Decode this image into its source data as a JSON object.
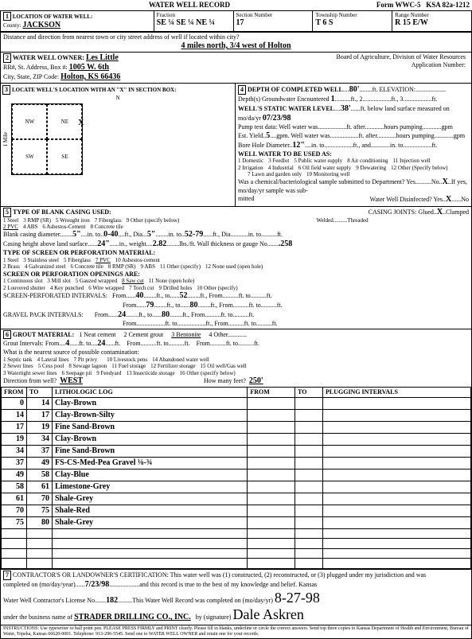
{
  "title": "WATER WELL RECORD",
  "form_no": "Form WWC-5",
  "ksa": "KSA 82a-1212",
  "header": {
    "location_label": "LOCATION OF WATER WELL:",
    "county_label": "County:",
    "county": "JACKSON",
    "fraction_label": "Fraction",
    "fraction": "SE ¼  SE ¼  NE ¼",
    "section_label": "Section Number",
    "section": "17",
    "township_label": "Township Number",
    "township": "T   6   S",
    "range_label": "Range Number",
    "range": "R   15   E/W"
  },
  "distance": {
    "label": "Distance and direction from nearest town or city street address of well if located within city?",
    "value": "4 miles north, 3/4 west of Holton"
  },
  "owner": {
    "label": "WATER WELL OWNER:",
    "name": "Les Little",
    "addr_label": "RR#, St. Address, Box #:",
    "addr": "1005 W. 6th",
    "city_label": "City, State, ZIP Code:",
    "city": "Holton, KS  66436",
    "board": "Board of Agriculture, Division of Water Resources",
    "app_label": "Application Number:"
  },
  "sec3": {
    "label": "LOCATE WELL'S LOCATION WITH AN \"X\" IN SECTION BOX:",
    "nw": "NW",
    "ne": "NE",
    "sw": "SW",
    "se": "SE",
    "mark": "X",
    "mile": "1 Mile",
    "north": "N",
    "east": "E",
    "south": "S",
    "west": "W"
  },
  "sec4": {
    "label": "DEPTH OF COMPLETED WELL",
    "depth": "80'",
    "elev_label": "ft. ELEVATION:",
    "gw1": "Depth(s) Groundwater Encountered",
    "gw1v": "1",
    "gw12": "ft., 2",
    "gw13": "ft., 3",
    "gwft": "ft.",
    "static": "WELL'S STATIC WATER LEVEL",
    "static_v": "38'",
    "static_txt": "ft. below land surface measured on mo/da/yr",
    "date": "07/23/98",
    "pump": "Pump test data:  Well water was",
    "after": "ft. after",
    "hours": "hours pumping",
    "gpm": "gpm",
    "est": "Est. Yield",
    "est_v": "5",
    "est_unit": "gpm.  Well water was",
    "bore": "Bore Hole Diameter",
    "bore_v": "12\"",
    "bore_to": "in. to",
    "bore_and": "ft., and",
    "bore_into": "in. to",
    "bore_ft": "ft.",
    "use": "WELL WATER TO BE USED AS:",
    "uses": [
      "1 Domestic",
      "2 Irrigation",
      "3 Feedlot",
      "4 Industrial",
      "5 Public water supply",
      "6 Oil field water supply",
      "7 Lawn and garden only",
      "8 Air conditioning",
      "9 Dewatering",
      "10 Monitoring well",
      "11 Injection well",
      "12 Other (Specify below)"
    ],
    "bact": "Was a chemical/bacteriological sample submitted to Department? Yes",
    "bact_no": "No",
    "bact_x": "X",
    "bact_txt": "If yes, mo/day/yr sample was sub-",
    "mitted": "mitted",
    "disinf": "Water Well Disinfected?  Yes",
    "disinf_x": "X",
    "disinf_no": "No"
  },
  "sec5": {
    "label": "TYPE OF BLANK CASING USED:",
    "opts": [
      "1 Steel",
      "2 PVC",
      "3 RMP (SR)",
      "4 ABS",
      "5 Wrought iron",
      "6 Asbestos-Cement",
      "7 Fiberglass",
      "8 Concrete tile",
      "9 Other (specify below)"
    ],
    "joints": "CASING JOINTS: Glued",
    "joints_x": "X",
    "joints2": "Clamped",
    "welded": "Welded",
    "threaded": "Threaded",
    "bcd": "Blank casing diameter",
    "bcd_v": "5\"",
    "bcd_to": "in. to",
    "bcd_v2": "0-40",
    "bcd_ft": "ft., Dia.",
    "bcd_v3": "5\"",
    "bcd_to2": "in. to",
    "bcd_v4": "52-79",
    "bcd_ft2": "ft., Dia.",
    "bcd_to3": "in. to",
    "bcd_ft3": "ft.",
    "ch": "Casing height above land surface",
    "ch_v": "24\"",
    "ch_in": "in., weight",
    "ch_w": "2.82",
    "ch_txt": "lbs./ft. Wall thickness or gauge No.",
    "ch_g": ".258",
    "screen": "TYPE OF SCREEN OR PERFORATION MATERIAL:",
    "scr_opts": [
      "1 Steel",
      "2 Brass",
      "3 Stainless steel",
      "4 Galvanized steel",
      "5 Fiberglass",
      "6 Concrete tile",
      "7 PVC",
      "8 RMP (SR)",
      "9 ABS",
      "10 Asbestos-cement",
      "11 Other (specify)",
      "12 None used (open hole)"
    ],
    "perf": "SCREEN OR PERFORATION OPENINGS ARE:",
    "perf_opts": [
      "1 Continuous slot",
      "2 Louvered shutter",
      "3 Mill slot",
      "4 Key punched",
      "5 Gauzed wrapped",
      "6 Wire wrapped",
      "7 Torch cut",
      "8 Saw cut",
      "9 Drilled holes",
      "10 Other (specify)",
      "11 None (open hole)"
    ],
    "spi": "SCREEN-PERFORATED INTERVALS:",
    "from": "From",
    "to": "ft., to",
    "ft": "ft.",
    "spi_rows": [
      [
        "40",
        "52"
      ],
      [
        "79",
        "80"
      ],
      [
        "24",
        "80"
      ]
    ],
    "gpi": "GRAVEL PACK INTERVALS:"
  },
  "sec6": {
    "label": "GROUT MATERIAL:",
    "opts": [
      "1 Neat cement",
      "2 Cement grout",
      "3 Bentonite",
      "4 Other"
    ],
    "gi": "Grout Intervals:   From",
    "gi_v1": "4",
    "gi_to": "ft. to",
    "gi_v2": "24",
    "gi_ft": "ft.",
    "gi_from2": "From",
    "gi_to2": "ft. to",
    "gi_ft2": "ft.",
    "contam": "What is the nearest source of possible contamination:",
    "c_opts": [
      "1 Septic tank",
      "2 Sewer lines",
      "3 Watertight sewer lines",
      "4 Lateral lines",
      "5 Cess pool",
      "6 Seepage pit",
      "7 Pit privy",
      "8 Sewage lagoon",
      "9 Feedyard",
      "10 Livestock pens",
      "11 Fuel storage",
      "12 Fertilizer storage",
      "13 Insecticide storage",
      "14 Abandoned water well",
      "15 Oil well/Gas well",
      "16 Other (specify below)"
    ],
    "dir": "Direction from well?",
    "dir_v": "WEST",
    "feet": "How many feet?",
    "feet_v": "250'"
  },
  "log": {
    "h1": "FROM",
    "h2": "TO",
    "h3": "LITHOLOGIC LOG",
    "h4": "FROM",
    "h5": "TO",
    "h6": "PLUGGING INTERVALS",
    "rows": [
      [
        "0",
        "14",
        "Clay-Brown"
      ],
      [
        "14",
        "17",
        "Clay-Brown-Silty"
      ],
      [
        "17",
        "19",
        "Fine Sand-Brown"
      ],
      [
        "19",
        "34",
        "Clay-Brown"
      ],
      [
        "34",
        "37",
        "Fine Sand-Brown"
      ],
      [
        "37",
        "49",
        "FS-CS-Med-Pea Gravel ⅛-¾"
      ],
      [
        "49",
        "58",
        "Clay-Blue"
      ],
      [
        "58",
        "61",
        "Limestone-Grey"
      ],
      [
        "61",
        "70",
        "Shale-Grey"
      ],
      [
        "70",
        "75",
        "Shale-Red"
      ],
      [
        "75",
        "80",
        "Shale-Grey"
      ]
    ]
  },
  "sec7": {
    "label": "CONTRACTOR'S OR LANDOWNER'S CERTIFICATION: This water well was (1) constructed, (2) reconstructed, or (3) plugged under my jurisdiction and was",
    "comp": "completed on (mo/day/year)",
    "comp_v": "7/23/98",
    "rest": "and this record is true to the best of my knowledge and belief. Kansas",
    "lic": "Water Well Contractor's License No.",
    "lic_v": "182",
    "rec": "This Water Well Record was completed on (mo/day/yr)",
    "rec_v": "8-27-98",
    "biz": "under the business name of",
    "biz_v": "STRADER DRILLING CO., INC.",
    "by": "by (signature)",
    "sig": "Dale Askren"
  },
  "footer": "INSTRUCTIONS: Use typewriter or ball point pen. PLEASE PRESS FIRMLY and PRINT clearly. Please fill in blanks, underline or circle the correct answers. Send top three copies to Kansas Department of Health and Environment, Bureau of Water, Topeka, Kansas 66620-0001. Telephone: 913-296-5545. Send one to WATER WELL OWNER and retain one for your records."
}
